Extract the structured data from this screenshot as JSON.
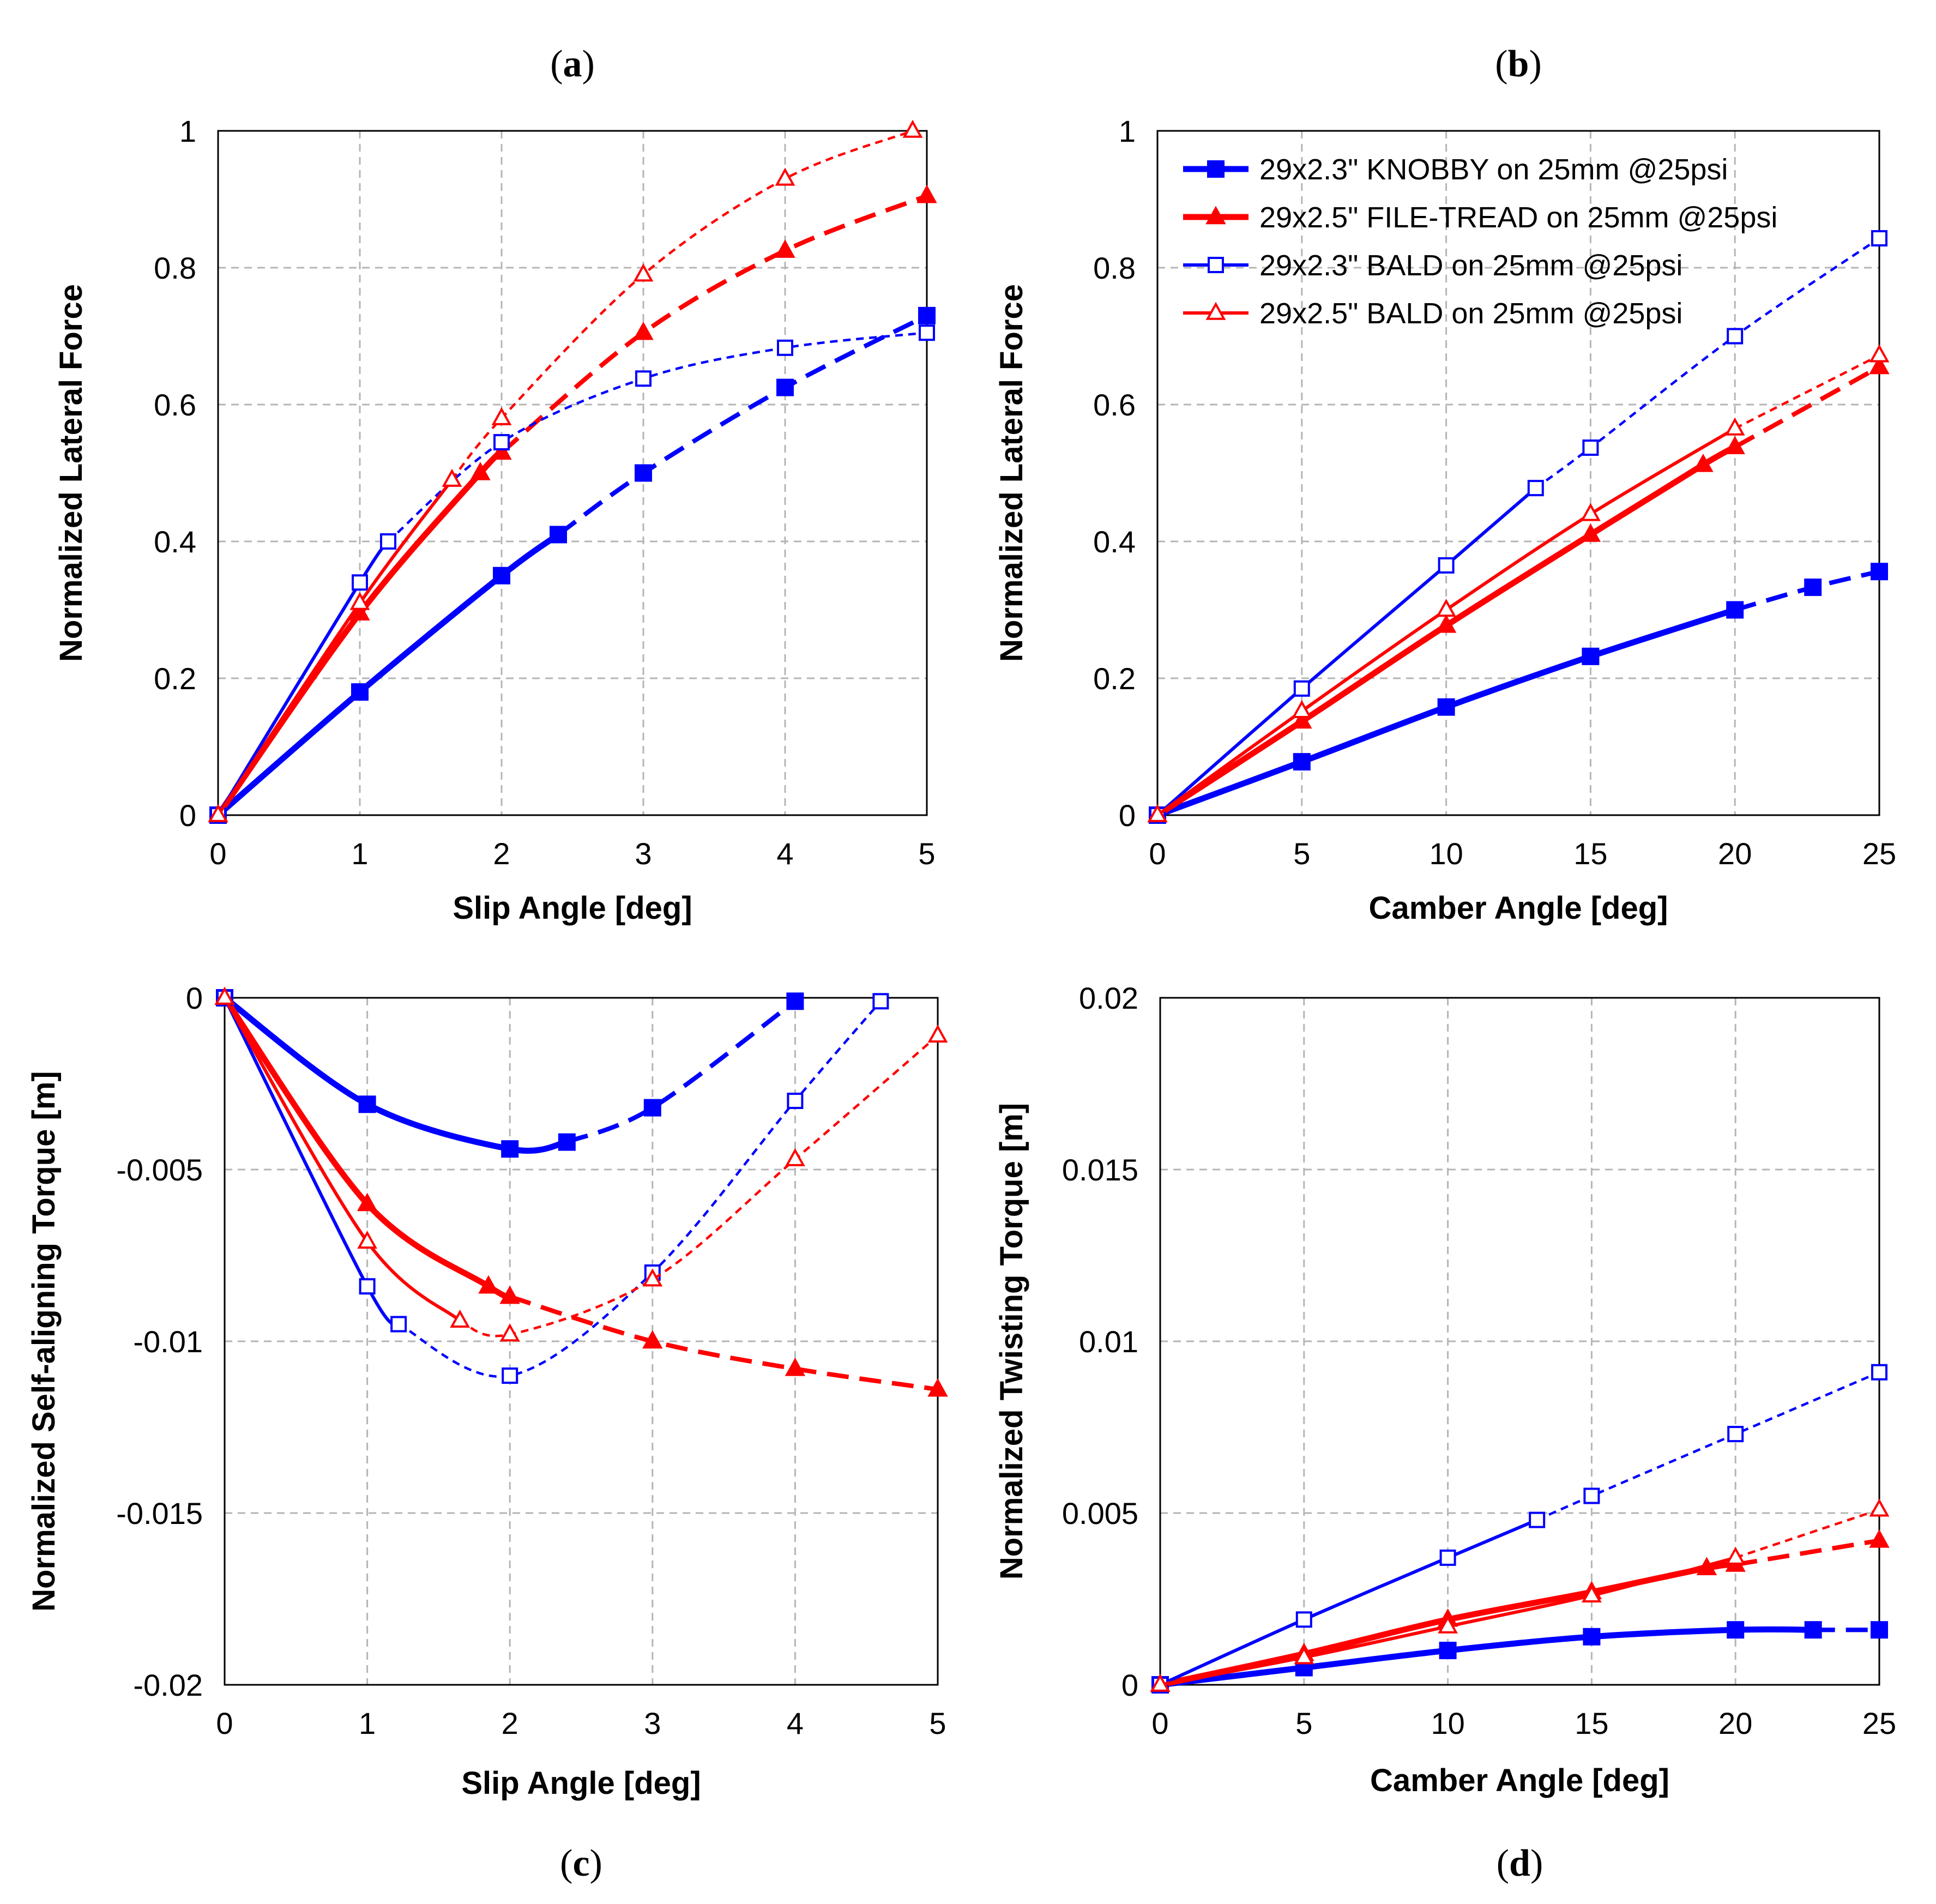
{
  "legend": [
    {
      "series": "knobby",
      "label": "29x2.3\" KNOBBY on 25mm @25psi"
    },
    {
      "series": "filetread",
      "label": "29x2.5\" FILE-TREAD on 25mm @25psi"
    },
    {
      "series": "bald23",
      "label": "29x2.3\" BALD on 25mm @25psi"
    },
    {
      "series": "bald25",
      "label": "29x2.5\" BALD on 25mm @25psi"
    }
  ],
  "series_styles": {
    "knobby": {
      "color": "#0000ff",
      "marker": "square-filled",
      "width": 11
    },
    "filetread": {
      "color": "#ff0000",
      "marker": "triangle-filled",
      "width": 11
    },
    "bald23": {
      "color": "#0000ff",
      "marker": "square-open",
      "width": 6
    },
    "bald25": {
      "color": "#ff0000",
      "marker": "triangle-open",
      "width": 6
    }
  },
  "chart_data": [
    {
      "panel": "a",
      "panel_label": "(a)",
      "type": "line",
      "xlabel": "Slip Angle [deg]",
      "ylabel": "Normalized Lateral Force",
      "xlim": [
        0,
        5
      ],
      "ylim": [
        0,
        1
      ],
      "xticks": [
        0,
        1,
        2,
        3,
        4,
        5
      ],
      "yticks": [
        0,
        0.2,
        0.4,
        0.6,
        0.8,
        1
      ],
      "xtick_labels": [
        "0",
        "1",
        "2",
        "3",
        "4",
        "5"
      ],
      "ytick_labels": [
        "0",
        "0.2",
        "0.4",
        "0.6",
        "0.8",
        "1"
      ],
      "grid": true,
      "series": [
        {
          "key": "knobby",
          "solid_x": [
            0,
            1,
            2,
            2.4
          ],
          "solid_y": [
            0,
            0.18,
            0.35,
            0.41
          ],
          "dashed_x": [
            2.4,
            3,
            4,
            5
          ],
          "dashed_y": [
            0.41,
            0.5,
            0.625,
            0.73
          ]
        },
        {
          "key": "filetread",
          "solid_x": [
            0,
            1,
            1.85,
            2
          ],
          "solid_y": [
            0,
            0.295,
            0.5,
            0.53
          ],
          "dashed_x": [
            2,
            3,
            4,
            5
          ],
          "dashed_y": [
            0.53,
            0.705,
            0.825,
            0.905
          ]
        },
        {
          "key": "bald23",
          "solid_x": [
            0,
            1,
            1.2
          ],
          "solid_y": [
            0,
            0.34,
            0.4
          ],
          "dashed_x": [
            1.2,
            2,
            3,
            4,
            5
          ],
          "dashed_y": [
            0.4,
            0.545,
            0.638,
            0.683,
            0.705
          ]
        },
        {
          "key": "bald25",
          "solid_x": [
            0,
            1,
            1.65
          ],
          "solid_y": [
            0,
            0.31,
            0.49
          ],
          "dashed_x": [
            1.65,
            2,
            3,
            4,
            4.9
          ],
          "dashed_y": [
            0.49,
            0.58,
            0.79,
            0.93,
            1.0
          ]
        }
      ]
    },
    {
      "panel": "b",
      "panel_label": "(b)",
      "type": "line",
      "xlabel": "Camber Angle [deg]",
      "ylabel": "Normalized Lateral Force",
      "xlim": [
        0,
        25
      ],
      "ylim": [
        0,
        1
      ],
      "xticks": [
        0,
        5,
        10,
        15,
        20,
        25
      ],
      "yticks": [
        0,
        0.2,
        0.4,
        0.6,
        0.8,
        1
      ],
      "xtick_labels": [
        "0",
        "5",
        "10",
        "15",
        "20",
        "25"
      ],
      "ytick_labels": [
        "0",
        "0.2",
        "0.4",
        "0.6",
        "0.8",
        "1"
      ],
      "grid": true,
      "series": [
        {
          "key": "knobby",
          "solid_x": [
            0,
            5,
            10,
            15,
            20
          ],
          "solid_y": [
            0,
            0.078,
            0.158,
            0.232,
            0.3
          ],
          "dashed_x": [
            20,
            22.7,
            25
          ],
          "dashed_y": [
            0.3,
            0.333,
            0.356
          ]
        },
        {
          "key": "filetread",
          "solid_x": [
            0,
            5,
            10,
            15,
            18.9,
            20
          ],
          "solid_y": [
            0,
            0.137,
            0.277,
            0.41,
            0.512,
            0.538
          ],
          "dashed_x": [
            20,
            25
          ],
          "dashed_y": [
            0.538,
            0.655
          ]
        },
        {
          "key": "bald23",
          "solid_x": [
            0,
            5,
            10,
            13.1
          ],
          "solid_y": [
            0,
            0.185,
            0.365,
            0.478
          ],
          "dashed_x": [
            13.1,
            15,
            20,
            25
          ],
          "dashed_y": [
            0.478,
            0.537,
            0.7,
            0.843
          ]
        },
        {
          "key": "bald25",
          "solid_x": [
            0,
            5,
            10,
            15,
            20
          ],
          "solid_y": [
            0,
            0.152,
            0.3,
            0.44,
            0.565
          ],
          "dashed_x": [
            20,
            25
          ],
          "dashed_y": [
            0.565,
            0.672
          ]
        }
      ]
    },
    {
      "panel": "c",
      "panel_label": "(c)",
      "type": "line",
      "xlabel": "Slip Angle [deg]",
      "ylabel": "Normalized Self-aligning Torque [m]",
      "xlim": [
        0,
        5
      ],
      "ylim": [
        -0.02,
        0
      ],
      "xticks": [
        0,
        1,
        2,
        3,
        4,
        5
      ],
      "yticks": [
        -0.02,
        -0.015,
        -0.01,
        -0.005,
        0
      ],
      "xtick_labels": [
        "0",
        "1",
        "2",
        "3",
        "4",
        "5"
      ],
      "ytick_labels": [
        "-0.02",
        "-0.015",
        "-0.01",
        "-0.005",
        "0"
      ],
      "grid": true,
      "series": [
        {
          "key": "knobby",
          "solid_x": [
            0,
            1,
            2,
            2.4
          ],
          "solid_y": [
            0,
            -0.0031,
            -0.0044,
            -0.0042
          ],
          "dashed_x": [
            2.4,
            3,
            4
          ],
          "dashed_y": [
            -0.0042,
            -0.0032,
            -0.0001
          ]
        },
        {
          "key": "filetread",
          "solid_x": [
            0,
            1,
            1.85,
            2
          ],
          "solid_y": [
            0,
            -0.006,
            -0.0084,
            -0.0087
          ],
          "dashed_x": [
            2,
            3,
            4,
            5
          ],
          "dashed_y": [
            -0.0087,
            -0.01,
            -0.0108,
            -0.0114
          ]
        },
        {
          "key": "bald23",
          "solid_x": [
            0,
            1,
            1.22
          ],
          "solid_y": [
            0,
            -0.0084,
            -0.0095
          ],
          "dashed_x": [
            1.22,
            2,
            3,
            4,
            4.6
          ],
          "dashed_y": [
            -0.0095,
            -0.011,
            -0.008,
            -0.003,
            -0.0001
          ]
        },
        {
          "key": "bald25",
          "solid_x": [
            0,
            1,
            1.65
          ],
          "solid_y": [
            0,
            -0.0071,
            -0.0094
          ],
          "dashed_x": [
            1.65,
            2,
            3,
            4,
            5
          ],
          "dashed_y": [
            -0.0094,
            -0.0098,
            -0.0082,
            -0.0047,
            -0.0011
          ]
        }
      ]
    },
    {
      "panel": "d",
      "panel_label": "(d)",
      "type": "line",
      "xlabel": "Camber Angle [deg]",
      "ylabel": "Normalized Twisting Torque [m]",
      "xlim": [
        0,
        25
      ],
      "ylim": [
        0,
        0.02
      ],
      "xticks": [
        0,
        5,
        10,
        15,
        20,
        25
      ],
      "yticks": [
        0,
        0.005,
        0.01,
        0.015,
        0.02
      ],
      "xtick_labels": [
        "0",
        "5",
        "10",
        "15",
        "20",
        "25"
      ],
      "ytick_labels": [
        "0",
        "0.005",
        "0.01",
        "0.015",
        "0.02"
      ],
      "grid": true,
      "series": [
        {
          "key": "knobby",
          "solid_x": [
            0,
            5,
            10,
            15,
            20,
            22.7
          ],
          "solid_y": [
            0,
            0.0005,
            0.001,
            0.0014,
            0.0016,
            0.0016
          ],
          "dashed_x": [
            22.7,
            25
          ],
          "dashed_y": [
            0.0016,
            0.0016
          ]
        },
        {
          "key": "filetread",
          "solid_x": [
            0,
            5,
            10,
            15,
            19,
            20
          ],
          "solid_y": [
            0,
            0.0009,
            0.0019,
            0.0027,
            0.0034,
            0.0035
          ],
          "dashed_x": [
            20,
            25
          ],
          "dashed_y": [
            0.0035,
            0.0042
          ]
        },
        {
          "key": "bald23",
          "solid_x": [
            0,
            5,
            10,
            13.1
          ],
          "solid_y": [
            0,
            0.0019,
            0.0037,
            0.0048
          ],
          "dashed_x": [
            13.1,
            15,
            20,
            25
          ],
          "dashed_y": [
            0.0048,
            0.0055,
            0.0073,
            0.0091
          ]
        },
        {
          "key": "bald25",
          "solid_x": [
            0,
            5,
            10,
            15,
            20
          ],
          "solid_y": [
            0,
            0.0008,
            0.0017,
            0.0026,
            0.0037
          ],
          "dashed_x": [
            20,
            25
          ],
          "dashed_y": [
            0.0037,
            0.0051
          ]
        }
      ]
    }
  ]
}
